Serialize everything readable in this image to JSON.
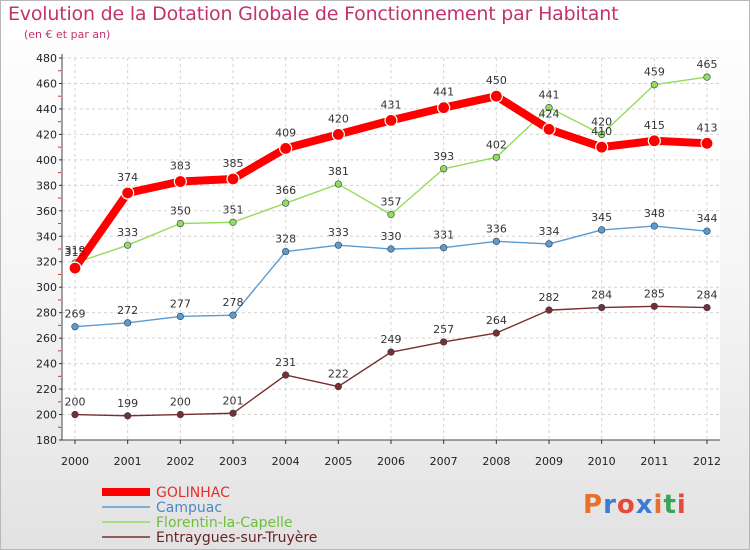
{
  "header": {
    "title": "Evolution de la Dotation Globale de Fonctionnement par Habitant",
    "subtitle": "(en € et par an)"
  },
  "logo": {
    "text": "Proxiti",
    "colors": [
      "#e8702a",
      "#3a7bd5",
      "#e84a3a",
      "#3a7bd5",
      "#e8702a",
      "#3aa35a",
      "#e84a3a"
    ]
  },
  "chart_data": {
    "type": "line",
    "x": [
      "2000",
      "2001",
      "2002",
      "2003",
      "2004",
      "2005",
      "2006",
      "2007",
      "2008",
      "2009",
      "2010",
      "2011",
      "2012"
    ],
    "ylim": [
      180,
      480
    ],
    "yticks": [
      180,
      200,
      220,
      240,
      260,
      280,
      300,
      320,
      340,
      360,
      380,
      400,
      420,
      440,
      460,
      480
    ],
    "grid": true,
    "legend_position": "bottom-left",
    "series": [
      {
        "name": "GOLINHAC",
        "color": "#ff0000",
        "label_color": "#e0302f",
        "highlight": true,
        "values": [
          315,
          374,
          383,
          385,
          409,
          420,
          431,
          441,
          450,
          424,
          410,
          415,
          413
        ]
      },
      {
        "name": "Campuac",
        "color": "#5b9bd0",
        "label_color": "#4f86c6",
        "values": [
          269,
          272,
          277,
          278,
          328,
          333,
          330,
          331,
          336,
          334,
          345,
          348,
          344
        ]
      },
      {
        "name": "Florentin-la-Capelle",
        "color": "#94dc5c",
        "label_color": "#6fbe3b",
        "values": [
          319,
          333,
          350,
          351,
          366,
          381,
          357,
          393,
          402,
          441,
          420,
          459,
          465
        ]
      },
      {
        "name": "Entraygues-sur-Truyère",
        "color": "#7a2e2e",
        "label_color": "#6a2424",
        "values": [
          200,
          199,
          200,
          201,
          231,
          222,
          249,
          257,
          264,
          282,
          284,
          285,
          284
        ]
      }
    ]
  }
}
